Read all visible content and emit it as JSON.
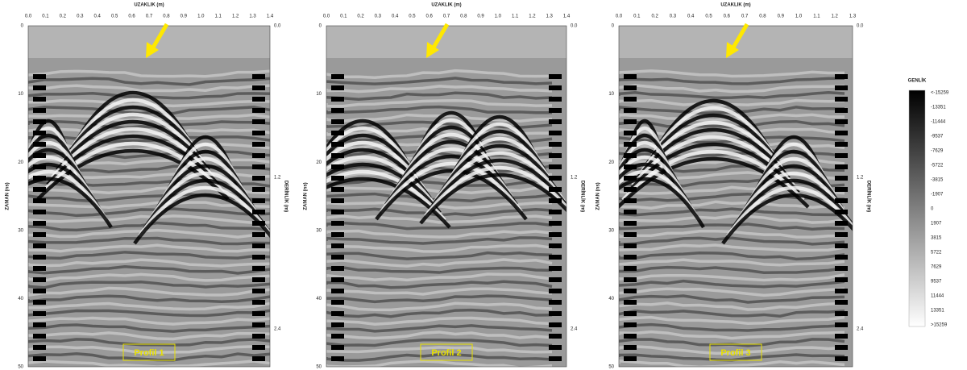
{
  "panels": [
    {
      "x_axis_title": "UZAKLIK (m)",
      "x_ticks": [
        "0.0",
        "0.1",
        "0.2",
        "0.3",
        "0.4",
        "0.5",
        "0.6",
        "0.7",
        "0.8",
        "0.9",
        "1.0",
        "1.1",
        "1.2",
        "1.3",
        "1.4"
      ],
      "y_axis_title": "ZAMAN (ns)",
      "y_ticks": [
        "0",
        "10",
        "20",
        "30",
        "40",
        "50"
      ],
      "y2_axis_title": "DERİNLİK (m)",
      "y2_ticks": [
        "0.0",
        "1.2",
        "2.4"
      ],
      "label": "Profil 1"
    },
    {
      "x_axis_title": "UZAKLIK (m)",
      "x_ticks": [
        "0.0",
        "0.1",
        "0.2",
        "0.3",
        "0.4",
        "0.5",
        "0.6",
        "0.7",
        "0.8",
        "0.9",
        "1.0",
        "1.1",
        "1.2",
        "1.3",
        "1.4"
      ],
      "y_axis_title": "ZAMAN (ns)",
      "y_ticks": [
        "0",
        "10",
        "20",
        "30",
        "40",
        "50"
      ],
      "y2_axis_title": "DERİNLİK (m)",
      "y2_ticks": [
        "0.0",
        "1.2",
        "2.4"
      ],
      "label": "Profil 2"
    },
    {
      "x_axis_title": "UZAKLIK (m)",
      "x_ticks": [
        "0.0",
        "0.1",
        "0.2",
        "0.3",
        "0.4",
        "0.5",
        "0.6",
        "0.7",
        "0.8",
        "0.9",
        "1.0",
        "1.1",
        "1.2",
        "1.3"
      ],
      "y_axis_title": "ZAMAN (ns)",
      "y_ticks": [
        "0",
        "10",
        "20",
        "30",
        "40",
        "50"
      ],
      "y2_axis_title": "DERİNLİK (m)",
      "y2_ticks": [
        "0.0",
        "1.2",
        "2.4"
      ],
      "label": "Profil 3"
    }
  ],
  "colorbar": {
    "title": "GENLİK",
    "labels": [
      "<-15259",
      "-13351",
      "-11444",
      "-9537",
      "-7629",
      "-5722",
      "-3815",
      "-1907",
      "0",
      "1907",
      "3815",
      "5722",
      "7629",
      "9537",
      "11444",
      "13351",
      ">15259"
    ]
  }
}
